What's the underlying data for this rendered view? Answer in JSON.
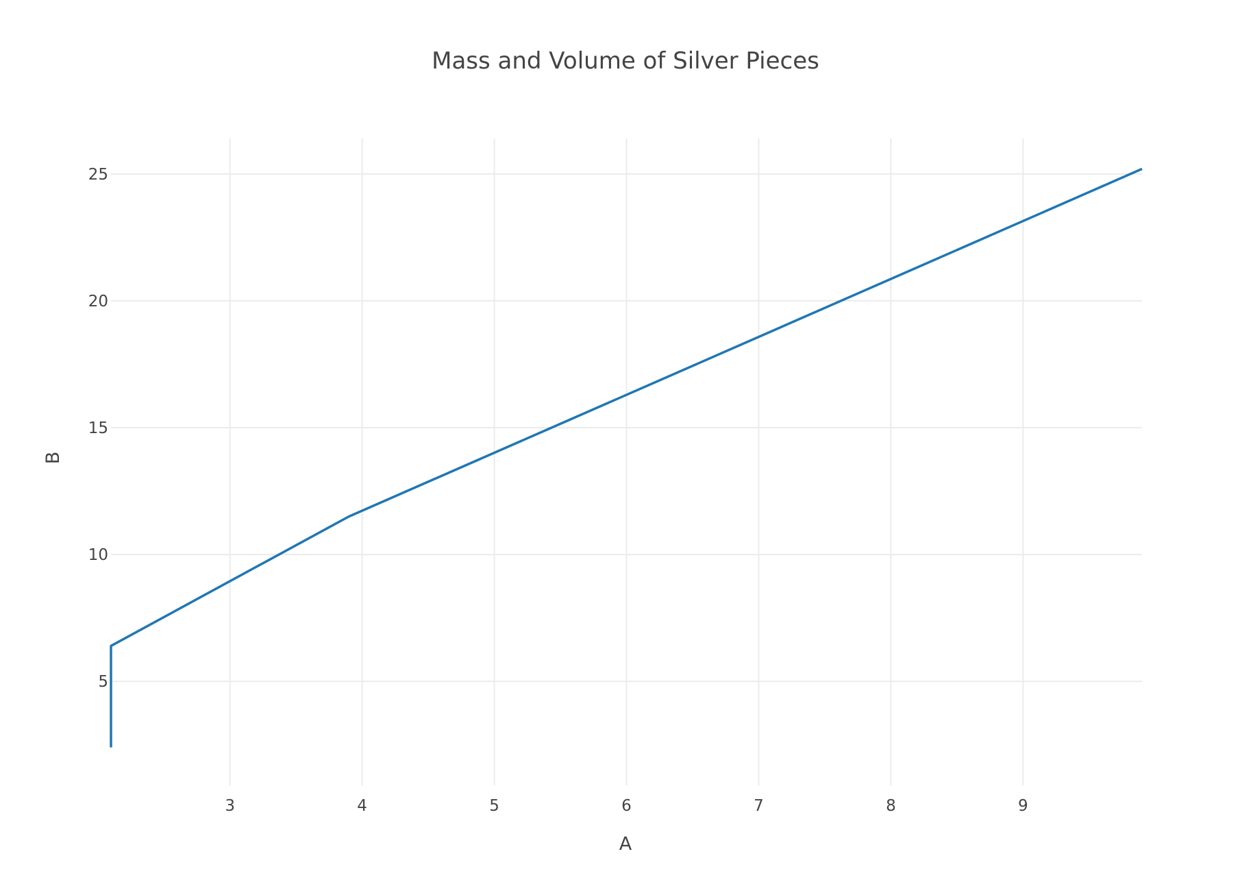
{
  "chart_data": {
    "type": "line",
    "title": "Mass and Volume of Silver Pieces",
    "xlabel": "A",
    "ylabel": "B",
    "xlim": [
      2.1,
      9.9
    ],
    "ylim": [
      0.9,
      26.4
    ],
    "x_ticks": [
      3,
      4,
      5,
      6,
      7,
      8,
      9
    ],
    "y_ticks": [
      5,
      10,
      15,
      20,
      25
    ],
    "grid": true,
    "series": [
      {
        "color": "#1f77b4",
        "x": [
          2.1,
          2.1,
          3.9,
          9.9
        ],
        "y": [
          2.4,
          6.4,
          11.5,
          25.2
        ]
      }
    ]
  }
}
